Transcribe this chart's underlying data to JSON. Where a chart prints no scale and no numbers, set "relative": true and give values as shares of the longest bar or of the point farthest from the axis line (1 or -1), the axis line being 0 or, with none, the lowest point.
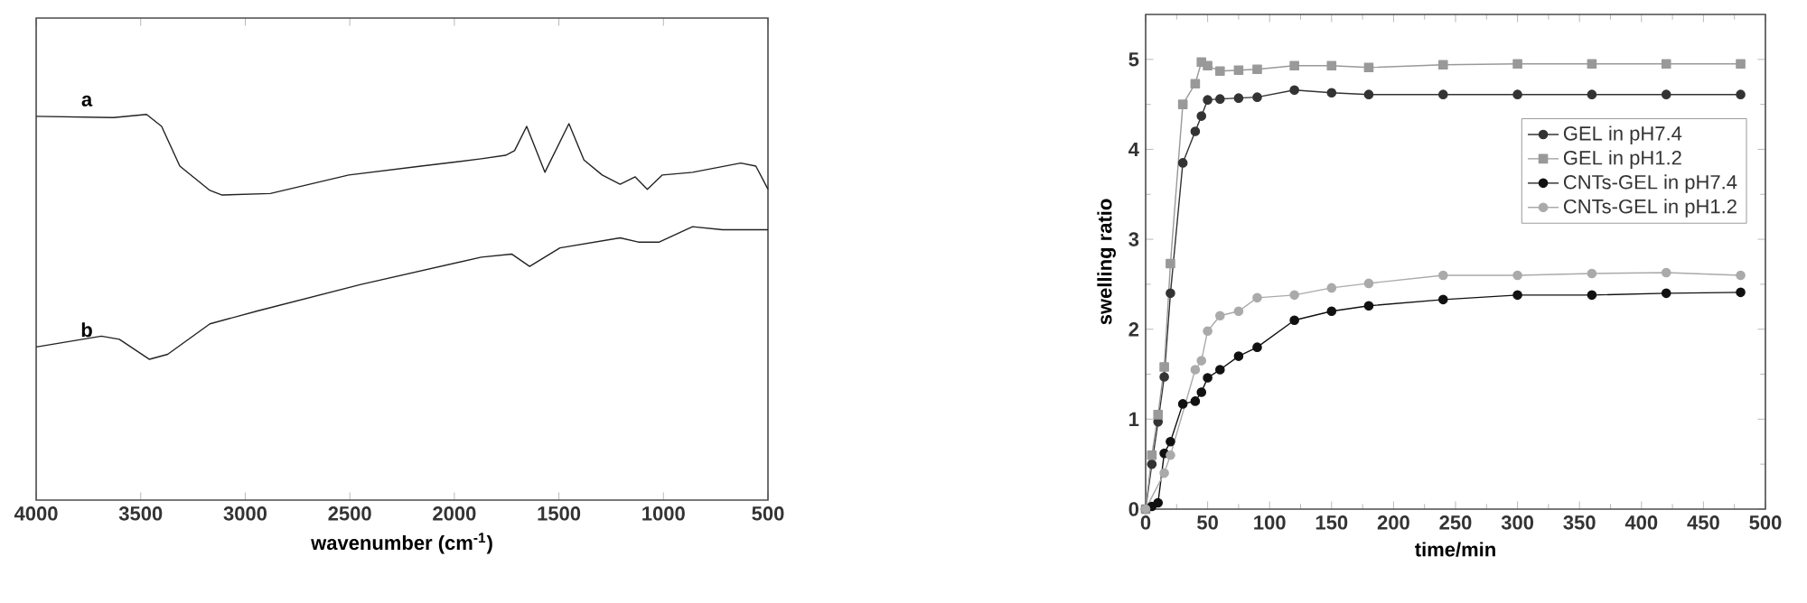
{
  "chart_data": [
    {
      "type": "line",
      "relative": true,
      "xlabel": "wavenumber (cm$^{-1}$)",
      "xlim": [
        4000,
        500
      ],
      "xticks": [
        4000,
        3500,
        3000,
        2500,
        2000,
        1500,
        1000,
        500
      ],
      "annotations": [
        "a",
        "b"
      ],
      "series": [
        {
          "color": "#222222",
          "x": [
            4000,
            3630,
            3472,
            3400,
            3313,
            3169,
            3111,
            2880,
            2505,
            2159,
            1871,
            1755,
            1712,
            1654,
            1567,
            1452,
            1380,
            1293,
            1207,
            1135,
            1077,
            1005,
            861,
            630,
            558,
            500
          ],
          "values": [
            0.995,
            0.992,
            1.0,
            0.969,
            0.866,
            0.803,
            0.791,
            0.795,
            0.843,
            0.866,
            0.885,
            0.894,
            0.906,
            0.969,
            0.85,
            0.976,
            0.882,
            0.843,
            0.819,
            0.838,
            0.806,
            0.843,
            0.85,
            0.874,
            0.866,
            0.806
          ]
        },
        {
          "color": "#222222",
          "x": [
            4000,
            3688,
            3602,
            3458,
            3371,
            3169,
            2938,
            2447,
            1871,
            1726,
            1640,
            1495,
            1207,
            1120,
            1020,
            861,
            717,
            500
          ],
          "values": [
            0.397,
            0.425,
            0.417,
            0.365,
            0.378,
            0.457,
            0.491,
            0.559,
            0.63,
            0.638,
            0.606,
            0.654,
            0.68,
            0.669,
            0.669,
            0.709,
            0.701,
            0.701
          ]
        }
      ]
    },
    {
      "type": "line",
      "xlabel": "time/min",
      "ylabel": "swelling ratio",
      "xlim": [
        0,
        500
      ],
      "xticks": [
        0,
        50,
        100,
        150,
        200,
        250,
        300,
        350,
        400,
        450,
        500
      ],
      "ylim": [
        0,
        5.5
      ],
      "yticks": [
        0,
        1,
        2,
        3,
        4,
        5
      ],
      "legend": "top right",
      "x": [
        0,
        5,
        10,
        15,
        20,
        30,
        40,
        45,
        50,
        60,
        75,
        90,
        120,
        150,
        180,
        240,
        300,
        360,
        420,
        480
      ],
      "series": [
        {
          "name": "GEL in pH7.4",
          "color": "#333333",
          "marker": "circle",
          "values": [
            0,
            0.5,
            0.97,
            1.47,
            2.4,
            3.85,
            4.2,
            4.37,
            4.55,
            4.56,
            4.57,
            4.58,
            4.66,
            4.63,
            4.61,
            4.61,
            4.61,
            4.61,
            4.61,
            4.61
          ]
        },
        {
          "name": "GEL in pH1.2",
          "color": "#999999",
          "marker": "square",
          "values": [
            0,
            0.6,
            1.05,
            1.58,
            2.73,
            4.5,
            4.73,
            4.97,
            4.93,
            4.87,
            4.88,
            4.89,
            4.93,
            4.93,
            4.91,
            4.94,
            4.95,
            4.95,
            4.95,
            4.95
          ]
        },
        {
          "name": "CNTs-GEL in pH7.4",
          "color": "#111111",
          "marker": "circle",
          "values": [
            0,
            0.03,
            0.07,
            0.62,
            0.75,
            1.17,
            1.2,
            1.3,
            1.46,
            1.55,
            1.7,
            1.8,
            2.1,
            2.2,
            2.26,
            2.33,
            2.38,
            2.38,
            2.4,
            2.41
          ]
        },
        {
          "name": "CNTs-GEL in pH1.2",
          "color": "#aaaaaa",
          "marker": "circle",
          "values": [
            0,
            null,
            null,
            0.4,
            0.6,
            null,
            1.55,
            1.65,
            1.98,
            2.15,
            2.2,
            2.35,
            2.38,
            2.46,
            2.51,
            2.6,
            2.6,
            2.62,
            2.63,
            2.6
          ]
        }
      ]
    }
  ]
}
